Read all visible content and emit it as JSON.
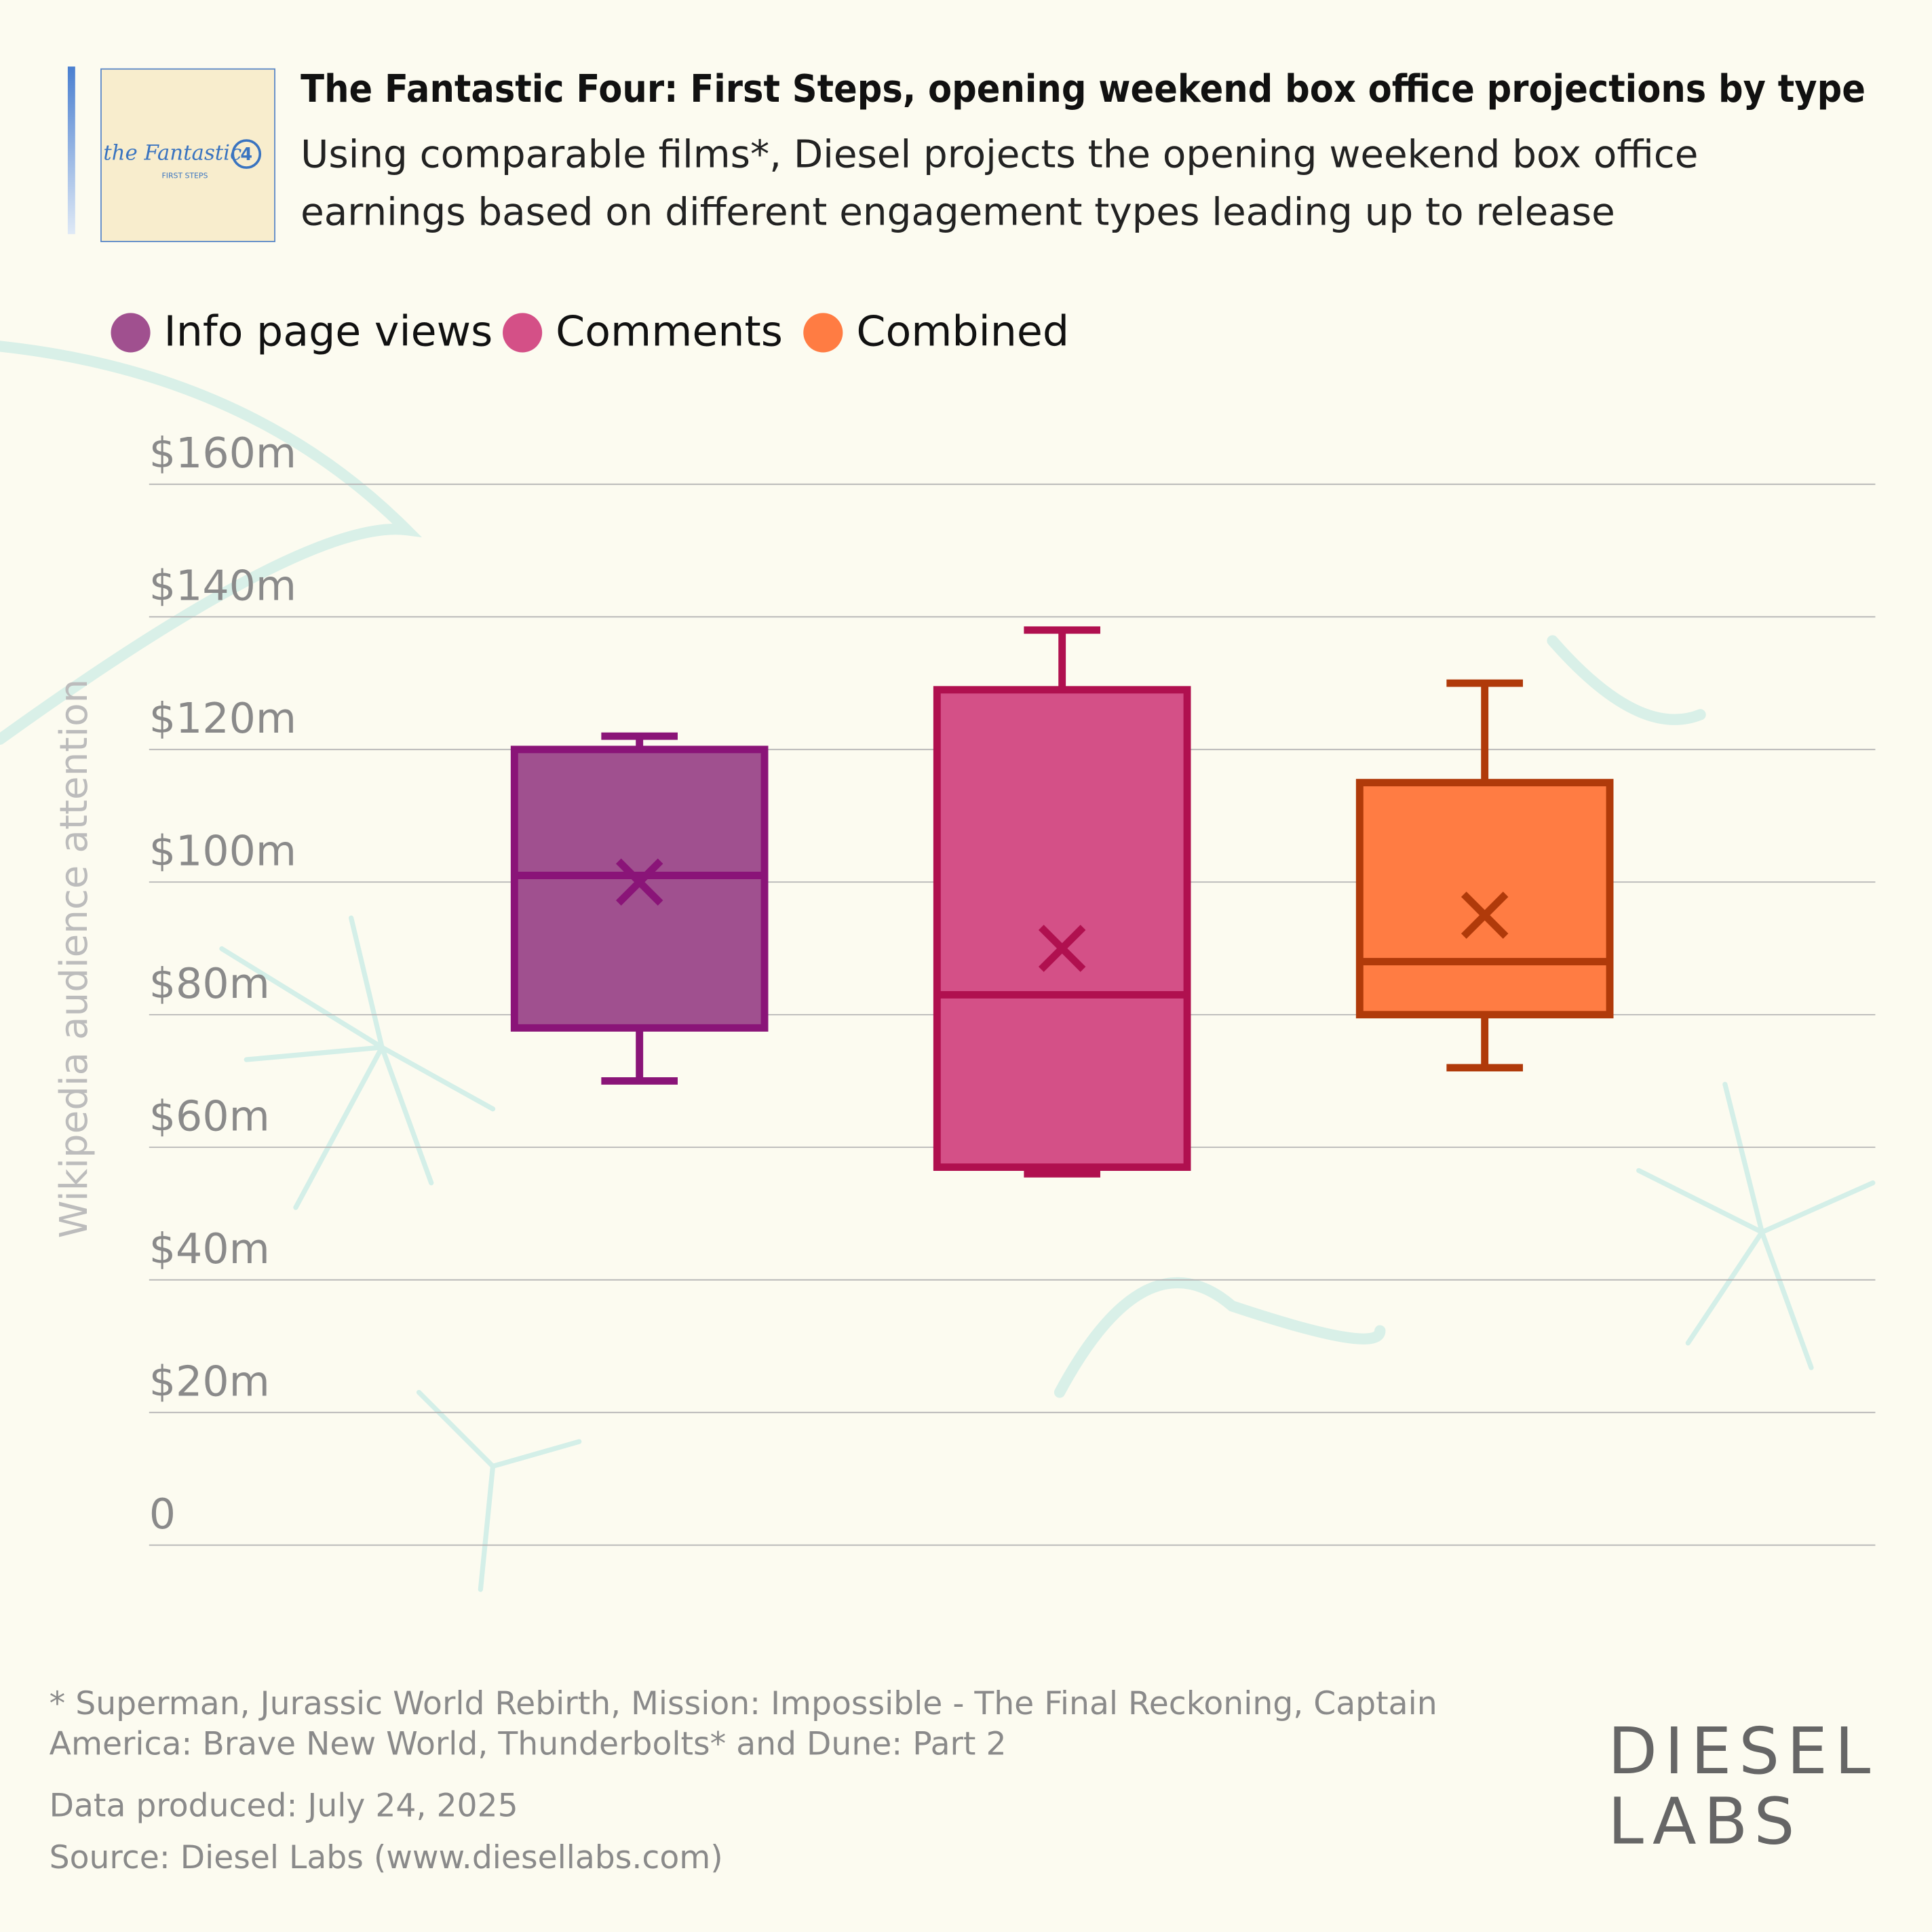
{
  "chart_data": {
    "type": "box",
    "title": "The Fantastic Four: First Steps, opening weekend box office projections by type",
    "subtitle": [
      "Using comparable films*, Diesel projects the opening weekend box office",
      "earnings based on different engagement types leading up to release"
    ],
    "poster": {
      "title": "the Fantastic",
      "number": "4",
      "tagline": "FIRST STEPS"
    },
    "y_label": "Wikipedia audience attention",
    "ylim": [
      0,
      160
    ],
    "yticks": [
      0,
      {
        "value": 20,
        "label": "$20m"
      },
      {
        "value": 40,
        "label": "$40m"
      },
      {
        "value": 60,
        "label": "$60m"
      },
      {
        "value": 80,
        "label": "$80m"
      },
      {
        "value": 100,
        "label": "$100m"
      },
      {
        "value": 120,
        "label": "$120m"
      },
      {
        "value": 140,
        "label": "$140m"
      },
      {
        "value": 160,
        "label": "$160m"
      }
    ],
    "grid": true,
    "series": [
      {
        "name": "Info page views",
        "color": "#a0508f",
        "edge_color": "#8a1478",
        "min": 70,
        "q1": 78,
        "median": 101,
        "q3": 120,
        "max": 122,
        "mean": 100
      },
      {
        "name": "Comments",
        "color": "#d45087",
        "edge_color": "#b0104f",
        "min": 56,
        "q1": 57,
        "median": 83,
        "q3": 129,
        "max": 138,
        "mean": 90
      },
      {
        "name": "Combined",
        "color": "#ff7c43",
        "edge_color": "#b03a0a",
        "min": 72,
        "q1": 80,
        "median": 88,
        "q3": 115,
        "max": 130,
        "mean": 95
      }
    ],
    "footnote": [
      "* Superman, Jurassic World Rebirth, Mission: Impossible - The Final Reckoning, Captain",
      "America: Brave New World, Thunderbolts* and Dune: Part 2"
    ],
    "data_produced": "Data produced: July 24, 2025",
    "source": "Source: Diesel Labs (www.diesellabs.com)",
    "logo": [
      "DIESEL",
      "LABS"
    ]
  }
}
